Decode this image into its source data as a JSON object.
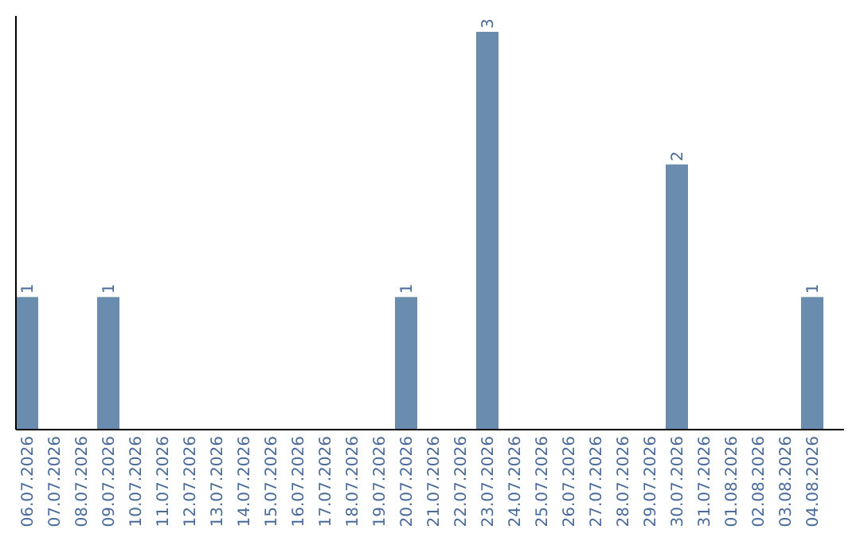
{
  "chart_data": {
    "type": "bar",
    "categories": [
      "06.07.2026",
      "07.07.2026",
      "08.07.2026",
      "09.07.2026",
      "10.07.2026",
      "11.07.2026",
      "12.07.2026",
      "13.07.2026",
      "14.07.2026",
      "15.07.2026",
      "16.07.2026",
      "17.07.2026",
      "18.07.2026",
      "19.07.2026",
      "20.07.2026",
      "21.07.2026",
      "22.07.2026",
      "23.07.2026",
      "24.07.2026",
      "25.07.2026",
      "26.07.2026",
      "27.07.2026",
      "28.07.2026",
      "29.07.2026",
      "30.07.2026",
      "31.07.2026",
      "01.08.2026",
      "02.08.2026",
      "03.08.2026",
      "04.08.2026"
    ],
    "values": [
      1,
      0,
      0,
      1,
      0,
      0,
      0,
      0,
      0,
      0,
      0,
      0,
      0,
      0,
      1,
      0,
      0,
      3,
      0,
      0,
      0,
      0,
      0,
      0,
      2,
      0,
      0,
      0,
      0,
      1
    ],
    "value_labels": [
      "1",
      null,
      null,
      "1",
      null,
      null,
      null,
      null,
      null,
      null,
      null,
      null,
      null,
      null,
      "1",
      null,
      null,
      "3",
      null,
      null,
      null,
      null,
      null,
      null,
      "2",
      null,
      null,
      null,
      null,
      "1"
    ],
    "color": "#6a8caf",
    "tick_labels": "x"
  }
}
